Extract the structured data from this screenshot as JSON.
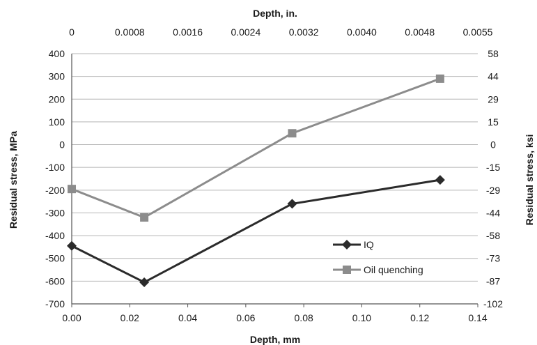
{
  "chart_data": {
    "type": "line",
    "xlabel": "Depth, mm",
    "x2label": "Depth, in.",
    "ylabel": "Residual stress, MPa",
    "y2label": "Residual stress, ksi",
    "xlim": [
      0,
      0.14
    ],
    "ylim": [
      -700,
      400
    ],
    "x_ticks": [
      "0.00",
      "0.02",
      "0.04",
      "0.06",
      "0.08",
      "0.10",
      "0.12",
      "0.14"
    ],
    "x2_ticks": [
      "0",
      "0.0008",
      "0.0016",
      "0.0024",
      "0.0032",
      "0.0040",
      "0.0048",
      "0.0055"
    ],
    "y_ticks": [
      "400",
      "300",
      "200",
      "100",
      "0",
      "-100",
      "-200",
      "-300",
      "-400",
      "-500",
      "-600",
      "-700"
    ],
    "y2_ticks": [
      "58",
      "44",
      "29",
      "15",
      "0",
      "-15",
      "-29",
      "-44",
      "-58",
      "-73",
      "-87",
      "-102"
    ],
    "grid": true,
    "legend_position": "lower-right",
    "series": [
      {
        "name": "IQ",
        "color": "#2b2b2b",
        "marker": "diamond",
        "x": [
          0.0,
          0.025,
          0.076,
          0.127
        ],
        "y": [
          -445,
          -605,
          -260,
          -155
        ]
      },
      {
        "name": "Oil quenching",
        "color": "#8c8c8c",
        "marker": "square",
        "x": [
          0.0,
          0.025,
          0.076,
          0.127
        ],
        "y": [
          -195,
          -320,
          50,
          290
        ]
      }
    ]
  }
}
